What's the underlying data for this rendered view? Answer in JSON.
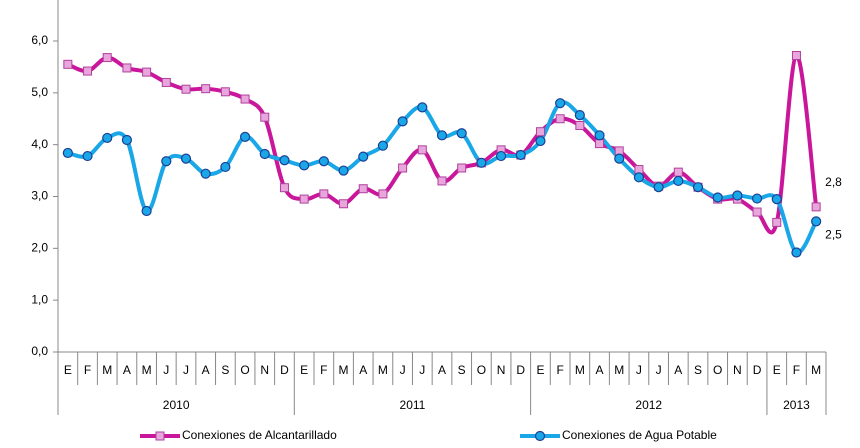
{
  "chart_data": {
    "type": "line",
    "groups": [
      {
        "label": "2010",
        "categories": [
          "E",
          "F",
          "M",
          "A",
          "M",
          "J",
          "J",
          "A",
          "S",
          "O",
          "N",
          "D"
        ]
      },
      {
        "label": "2011",
        "categories": [
          "E",
          "F",
          "M",
          "A",
          "M",
          "J",
          "J",
          "A",
          "S",
          "O",
          "N",
          "D"
        ]
      },
      {
        "label": "2012",
        "categories": [
          "E",
          "F",
          "M",
          "A",
          "M",
          "J",
          "J",
          "A",
          "S",
          "O",
          "N",
          "D"
        ]
      },
      {
        "label": "2013",
        "categories": [
          "E",
          "F",
          "M"
        ]
      }
    ],
    "series": [
      {
        "name": "Conexiones de Alcantarillado",
        "color": "#c9169a",
        "marker": "square",
        "marker_color": "#e8a6dc",
        "values": [
          5.55,
          5.42,
          5.68,
          5.48,
          5.4,
          5.2,
          5.07,
          5.08,
          5.02,
          4.88,
          4.53,
          3.17,
          2.95,
          3.05,
          2.86,
          3.15,
          3.05,
          3.55,
          3.9,
          3.3,
          3.55,
          3.65,
          3.9,
          3.8,
          4.25,
          4.5,
          4.37,
          4.02,
          3.88,
          3.52,
          3.2,
          3.47,
          3.18,
          2.95,
          2.95,
          2.7,
          2.5,
          5.72,
          2.8
        ],
        "value_labels": [
          null,
          null,
          null,
          null,
          null,
          null,
          null,
          null,
          null,
          null,
          null,
          null,
          null,
          null,
          null,
          null,
          null,
          null,
          null,
          null,
          null,
          null,
          null,
          null,
          null,
          null,
          null,
          null,
          null,
          null,
          null,
          null,
          null,
          null,
          null,
          null,
          null,
          null,
          "2,8"
        ]
      },
      {
        "name": "Conexiones de Agua Potable",
        "color": "#1aa7e8",
        "marker": "circle",
        "marker_color": "#1aa7e8",
        "values": [
          3.84,
          3.78,
          4.13,
          4.09,
          2.72,
          3.68,
          3.73,
          3.44,
          3.57,
          4.15,
          3.82,
          3.7,
          3.6,
          3.68,
          3.5,
          3.77,
          3.98,
          4.45,
          4.72,
          4.18,
          4.22,
          3.65,
          3.78,
          3.8,
          4.07,
          4.8,
          4.57,
          4.18,
          3.73,
          3.37,
          3.18,
          3.3,
          3.18,
          2.98,
          3.02,
          2.96,
          2.95,
          1.92,
          2.52
        ],
        "value_labels": [
          null,
          null,
          null,
          null,
          null,
          null,
          null,
          null,
          null,
          null,
          null,
          null,
          null,
          null,
          null,
          null,
          null,
          null,
          null,
          null,
          null,
          null,
          null,
          null,
          null,
          null,
          null,
          null,
          null,
          null,
          null,
          null,
          null,
          null,
          null,
          null,
          null,
          null,
          "2,5"
        ]
      }
    ],
    "ylim": [
      0,
      6
    ],
    "yticks": [
      {
        "value": 0,
        "label": "0,0"
      },
      {
        "value": 1,
        "label": "1,0"
      },
      {
        "value": 2,
        "label": "2,0"
      },
      {
        "value": 3,
        "label": "3,0"
      },
      {
        "value": 4,
        "label": "4,0"
      },
      {
        "value": 5,
        "label": "5,0"
      },
      {
        "value": 6,
        "label": "6,0"
      }
    ],
    "legend": "bottom"
  }
}
